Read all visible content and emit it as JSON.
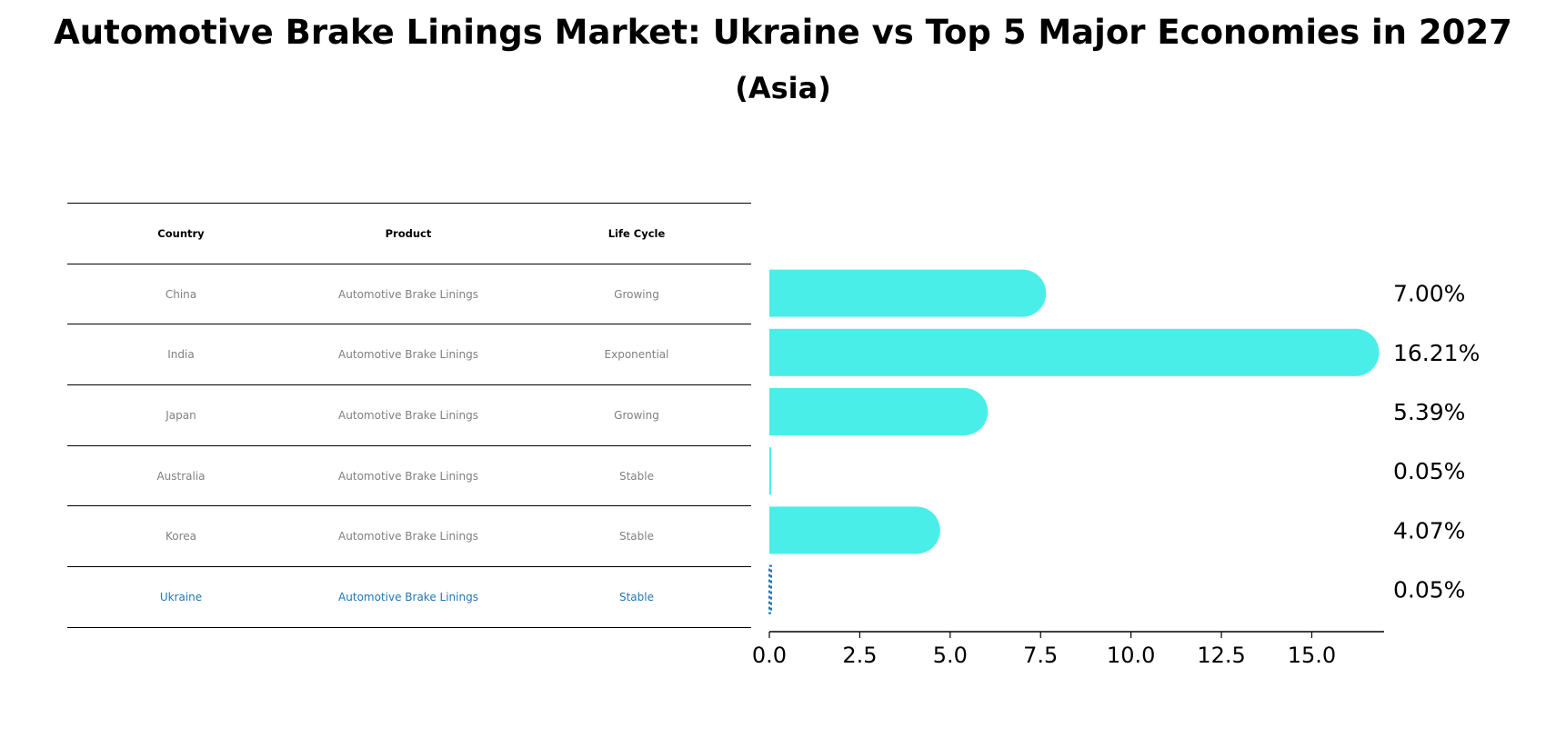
{
  "title": "Automotive Brake Linings Market: Ukraine vs Top 5 Major Economies in 2027",
  "subtitle": "(Asia)",
  "table": {
    "headers": [
      "Country",
      "Product",
      "Life Cycle"
    ],
    "rows": [
      {
        "country": "China",
        "product": "Automotive Brake Linings",
        "life_cycle": "Growing"
      },
      {
        "country": "India",
        "product": "Automotive Brake Linings",
        "life_cycle": "Exponential"
      },
      {
        "country": "Japan",
        "product": "Automotive Brake Linings",
        "life_cycle": "Growing"
      },
      {
        "country": "Australia",
        "product": "Automotive Brake Linings",
        "life_cycle": "Stable"
      },
      {
        "country": "Korea",
        "product": "Automotive Brake Linings",
        "life_cycle": "Stable"
      },
      {
        "country": "Ukraine",
        "product": "Automotive Brake Linings",
        "life_cycle": "Stable"
      }
    ]
  },
  "chart_data": {
    "type": "bar",
    "orientation": "horizontal",
    "categories": [
      "China",
      "India",
      "Japan",
      "Australia",
      "Korea",
      "Ukraine"
    ],
    "values": [
      7.0,
      16.21,
      5.39,
      0.05,
      4.07,
      0.05
    ],
    "value_labels": [
      "7.00%",
      "16.21%",
      "5.39%",
      "0.05%",
      "4.07%",
      "0.05%"
    ],
    "highlight": "Ukraine",
    "xlim": [
      0,
      17
    ],
    "xticks": [
      0.0,
      2.5,
      5.0,
      7.5,
      10.0,
      12.5,
      15.0
    ],
    "xtick_labels": [
      "0.0",
      "2.5",
      "5.0",
      "7.5",
      "10.0",
      "12.5",
      "15.0"
    ],
    "colors": {
      "bar": "#4aeee8",
      "highlight": "#1f77b4"
    }
  }
}
